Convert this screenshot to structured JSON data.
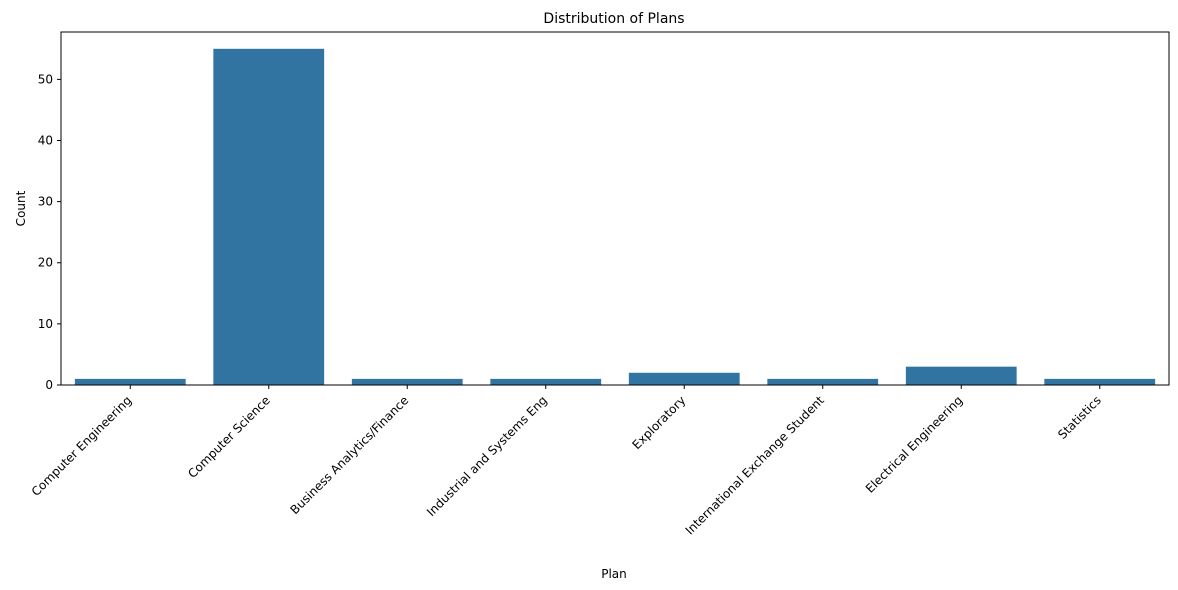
{
  "chart_data": {
    "type": "bar",
    "title": "Distribution of Plans",
    "xlabel": "Plan",
    "ylabel": "Count",
    "categories": [
      "Computer Engineering",
      "Computer Science",
      "Business Analytics/Finance",
      "Industrial and Systems Eng",
      "Exploratory",
      "International Exchange Student",
      "Electrical Engineering",
      "Statistics"
    ],
    "values": [
      1,
      55,
      1,
      1,
      2,
      1,
      3,
      1
    ],
    "ylim": [
      0,
      57.75
    ],
    "yticks": [
      0,
      10,
      20,
      30,
      40,
      50
    ],
    "grid": false,
    "bar_color": "#3274a1"
  }
}
